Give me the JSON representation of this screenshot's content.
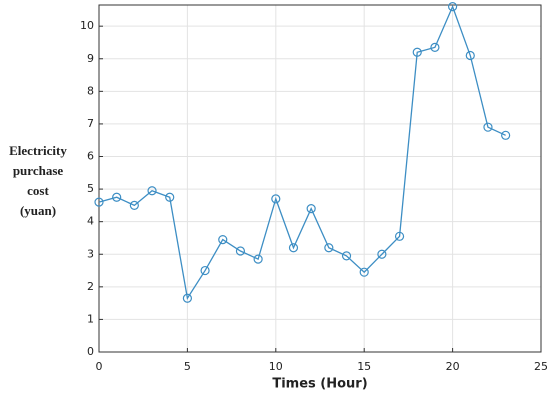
{
  "chart_data": {
    "type": "line",
    "x_label": "Times  (Hour)",
    "y_label": [
      "Electricity",
      "purchase",
      "cost",
      "(yuan)"
    ],
    "x": [
      0,
      1,
      2,
      3,
      4,
      5,
      6,
      7,
      8,
      9,
      10,
      11,
      12,
      13,
      14,
      15,
      16,
      17,
      18,
      19,
      20,
      21,
      22,
      23
    ],
    "series": [
      {
        "color": "#3d8ec4",
        "values": [
          4.6,
          4.75,
          4.5,
          4.95,
          4.75,
          1.65,
          2.5,
          3.45,
          3.1,
          2.85,
          4.7,
          3.2,
          4.4,
          3.2,
          2.95,
          2.45,
          3.0,
          3.55,
          9.2,
          9.35,
          10.6,
          9.1,
          6.9,
          6.65
        ]
      }
    ],
    "xlim": [
      0,
      25
    ],
    "xticks": [
      0,
      5,
      10,
      15,
      20,
      25
    ],
    "ylim": [
      0,
      10.65
    ],
    "yticks": [
      0,
      1,
      2,
      3,
      4,
      5,
      6,
      7,
      8,
      9,
      10
    ],
    "grid": true
  }
}
